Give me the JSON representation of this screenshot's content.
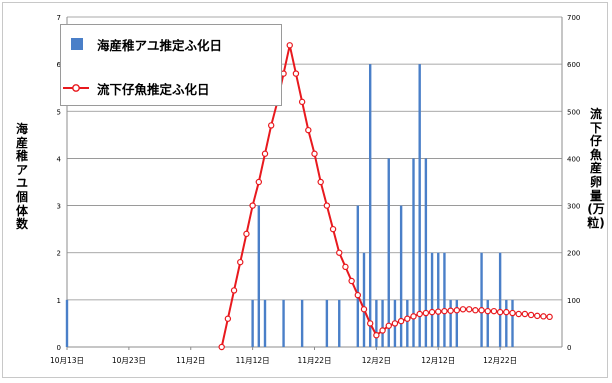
{
  "chart_data": {
    "type": "bar+line",
    "title": "",
    "x_axis": {
      "tick_labels": [
        "10月13日",
        "10月23日",
        "11月2日",
        "11月12日",
        "11月22日",
        "12月2日",
        "12月12日",
        "12月22日"
      ],
      "tick_days": [
        0,
        10,
        20,
        30,
        40,
        50,
        60,
        70
      ],
      "xlim_days": [
        0,
        80
      ]
    },
    "y_left": {
      "label": "海産稚アユ個体数",
      "ylim": [
        0,
        7
      ],
      "ticks": [
        "0",
        "1",
        "2",
        "3",
        "4",
        "5",
        "6",
        "7"
      ]
    },
    "y_right": {
      "label": "流下仔魚産卵量(万粒)",
      "ylim": [
        0,
        700
      ],
      "ticks": [
        "0",
        "100",
        "200",
        "300",
        "400",
        "500",
        "600",
        "700"
      ]
    },
    "grid": true,
    "legend_position": "top-left",
    "series": [
      {
        "name": "海産稚アユ推定ふ化日",
        "type": "bar",
        "axis": "left",
        "color": "#4a7fc8",
        "x_days": [
          0,
          30,
          31,
          32,
          35,
          38,
          42,
          44,
          47,
          48,
          49,
          50,
          51,
          52,
          53,
          54,
          55,
          56,
          57,
          58,
          59,
          60,
          61,
          62,
          63,
          67,
          68,
          70,
          71,
          72
        ],
        "values": [
          1,
          1,
          3,
          1,
          1,
          1,
          1,
          1,
          3,
          2,
          6,
          1,
          1,
          4,
          1,
          3,
          1,
          4,
          6,
          4,
          2,
          2,
          2,
          1,
          1,
          2,
          1,
          2,
          1,
          1
        ]
      },
      {
        "name": "流下仔魚推定ふ化日",
        "type": "line",
        "axis": "right",
        "color": "#e8191e",
        "x_days": [
          25,
          26,
          27,
          28,
          29,
          30,
          31,
          32,
          33,
          34,
          35,
          36,
          37,
          38,
          39,
          40,
          41,
          42,
          43,
          44,
          45,
          46,
          47,
          48,
          49,
          50,
          51,
          52,
          53,
          54,
          55,
          56,
          57,
          58,
          59,
          60,
          61,
          62,
          63,
          64,
          65,
          66,
          67,
          68,
          69,
          70,
          71,
          72,
          73,
          74,
          75,
          76,
          77,
          78
        ],
        "values": [
          0,
          60,
          120,
          180,
          240,
          300,
          350,
          410,
          470,
          520,
          580,
          640,
          580,
          520,
          460,
          410,
          350,
          300,
          250,
          200,
          170,
          140,
          110,
          80,
          50,
          25,
          35,
          45,
          50,
          55,
          60,
          65,
          70,
          72,
          74,
          75,
          76,
          77,
          78,
          80,
          80,
          78,
          78,
          76,
          76,
          74,
          74,
          72,
          70,
          70,
          68,
          66,
          65,
          64
        ]
      }
    ]
  }
}
